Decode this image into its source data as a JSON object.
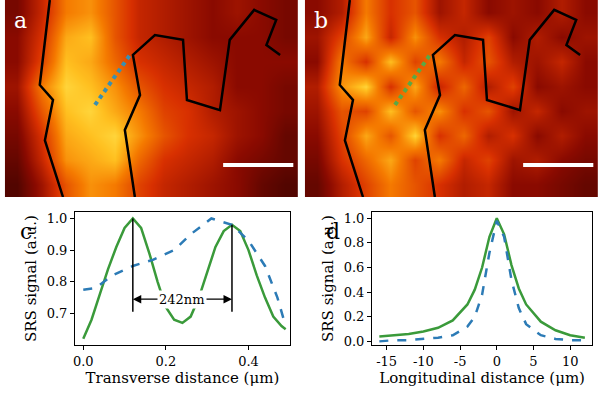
{
  "chart_data": [
    {
      "type": "heatmap",
      "panel_label": "a",
      "tick_labels": false,
      "xlim": [
        -0.5,
        11.5
      ],
      "ylim": [
        7.5,
        -0.5
      ],
      "zlim": [
        0,
        1
      ],
      "z": [
        [
          0.25,
          0.45,
          0.7,
          0.75,
          0.6,
          0.45,
          0.4,
          0.35,
          0.3,
          0.35,
          0.3,
          0.25
        ],
        [
          0.3,
          0.5,
          0.8,
          0.85,
          0.6,
          0.45,
          0.4,
          0.35,
          0.3,
          0.3,
          0.3,
          0.25
        ],
        [
          0.3,
          0.55,
          0.85,
          0.8,
          0.65,
          0.5,
          0.45,
          0.4,
          0.35,
          0.3,
          0.3,
          0.3
        ],
        [
          0.35,
          0.7,
          0.9,
          0.85,
          0.75,
          0.6,
          0.5,
          0.45,
          0.4,
          0.3,
          0.3,
          0.25
        ],
        [
          0.3,
          0.6,
          0.85,
          0.9,
          0.8,
          0.7,
          0.55,
          0.5,
          0.4,
          0.35,
          0.3,
          0.25
        ],
        [
          0.25,
          0.5,
          0.8,
          0.85,
          0.9,
          0.75,
          0.6,
          0.5,
          0.45,
          0.35,
          0.3,
          0.2
        ],
        [
          0.2,
          0.45,
          0.75,
          0.8,
          0.85,
          0.65,
          0.5,
          0.45,
          0.4,
          0.3,
          0.25,
          0.2
        ],
        [
          0.15,
          0.35,
          0.6,
          0.75,
          0.7,
          0.55,
          0.45,
          0.4,
          0.35,
          0.3,
          0.2,
          0.15
        ]
      ],
      "series": [
        {
          "color": "#000000",
          "x": [
            1.34,
            0.93,
            1.47,
            1.14,
            1.88
          ],
          "values": [
            -0.5,
            2.95,
            3.56,
            5.2,
            7.5
          ]
        },
        {
          "color": "#000000",
          "x": [
            4.82,
            4.41,
            5.03,
            4.74,
            5.64,
            6.79,
            6.95,
            8.3,
            8.7,
            9.7,
            10.6,
            10.2,
            10.76
          ],
          "values": [
            7.5,
            4.78,
            3.36,
            1.73,
            0.92,
            1.12,
            3.56,
            3.97,
            1.12,
            -0.1,
            0.31,
            1.33,
            1.73
          ]
        },
        {
          "color": "#3a8fb0",
          "line_style": "dot",
          "x": [
            3.19,
            4.62
          ],
          "values": [
            3.76,
            1.73
          ]
        },
        {
          "color": "#ffffff",
          "x": [
            8.43,
            11.3
          ],
          "values": [
            6.2,
            6.2
          ]
        }
      ]
    },
    {
      "type": "heatmap",
      "panel_label": "b",
      "tick_labels": false,
      "xlim": [
        -0.5,
        11.5
      ],
      "ylim": [
        7.5,
        -0.5
      ],
      "zlim": [
        0,
        1
      ],
      "z": [
        [
          0.3,
          0.4,
          0.7,
          0.5,
          0.6,
          0.35,
          0.45,
          0.3,
          0.35,
          0.3,
          0.4,
          0.3
        ],
        [
          0.35,
          0.55,
          0.8,
          0.45,
          0.75,
          0.5,
          0.4,
          0.55,
          0.3,
          0.4,
          0.3,
          0.35
        ],
        [
          0.3,
          0.7,
          0.5,
          0.85,
          0.55,
          0.7,
          0.45,
          0.6,
          0.4,
          0.35,
          0.45,
          0.3
        ],
        [
          0.4,
          0.75,
          0.9,
          0.5,
          0.8,
          0.45,
          0.65,
          0.4,
          0.55,
          0.3,
          0.35,
          0.3
        ],
        [
          0.35,
          0.6,
          0.55,
          0.85,
          0.6,
          0.75,
          0.5,
          0.6,
          0.35,
          0.45,
          0.3,
          0.35
        ],
        [
          0.3,
          0.55,
          0.8,
          0.6,
          0.9,
          0.5,
          0.65,
          0.4,
          0.5,
          0.3,
          0.4,
          0.3
        ],
        [
          0.25,
          0.5,
          0.65,
          0.8,
          0.55,
          0.7,
          0.45,
          0.55,
          0.35,
          0.4,
          0.3,
          0.25
        ],
        [
          0.2,
          0.4,
          0.55,
          0.7,
          0.6,
          0.5,
          0.4,
          0.45,
          0.3,
          0.3,
          0.25,
          0.2
        ]
      ],
      "series": [
        {
          "color": "#000000",
          "x": [
            1.34,
            0.93,
            1.47,
            1.14,
            1.88
          ],
          "values": [
            -0.5,
            2.95,
            3.56,
            5.2,
            7.5
          ]
        },
        {
          "color": "#000000",
          "x": [
            4.82,
            4.41,
            5.03,
            4.74,
            5.64,
            6.79,
            6.95,
            8.3,
            8.7,
            9.7,
            10.6,
            10.2,
            10.76
          ],
          "values": [
            7.5,
            4.78,
            3.36,
            1.73,
            0.92,
            1.12,
            3.56,
            3.97,
            1.12,
            -0.1,
            0.31,
            1.33,
            1.73
          ]
        },
        {
          "color": "#5aa845",
          "line_style": "dot",
          "x": [
            3.19,
            4.62
          ],
          "values": [
            3.76,
            1.73
          ]
        },
        {
          "color": "#ffffff",
          "x": [
            8.43,
            11.3
          ],
          "values": [
            6.2,
            6.2
          ]
        }
      ]
    },
    {
      "type": "line",
      "panel_label": "c",
      "grid": false,
      "x_label": "Transverse distance (μm)",
      "y_label": "SRS signal (a.u.)",
      "xlim": [
        -0.02,
        0.5
      ],
      "ylim": [
        0.6,
        1.02
      ],
      "xticks": [
        {
          "value": 0,
          "label": "0.0"
        },
        0.2,
        0.4
      ],
      "yticks": [
        0.7,
        0.8,
        0.9,
        {
          "value": 1,
          "label": "1.0"
        }
      ],
      "series": [
        {
          "color": "#3a9a3a",
          "line_style": "solid",
          "x": [
            0,
            0.02,
            0.04,
            0.06,
            0.08,
            0.1,
            0.12,
            0.14,
            0.16,
            0.18,
            0.2,
            0.22,
            0.24,
            0.26,
            0.28,
            0.3,
            0.32,
            0.34,
            0.36,
            0.38,
            0.4,
            0.42,
            0.44,
            0.46,
            0.48,
            0.49
          ],
          "values": [
            0.62,
            0.68,
            0.76,
            0.84,
            0.91,
            0.97,
            1.0,
            0.97,
            0.89,
            0.8,
            0.72,
            0.68,
            0.67,
            0.69,
            0.75,
            0.83,
            0.91,
            0.96,
            0.98,
            0.96,
            0.9,
            0.82,
            0.75,
            0.69,
            0.66,
            0.65
          ]
        },
        {
          "color": "#2c7bb6",
          "line_style": "dash",
          "x": [
            0,
            0.03,
            0.07,
            0.12,
            0.17,
            0.22,
            0.26,
            0.3,
            0.31,
            0.36,
            0.4,
            0.44,
            0.47,
            0.49
          ],
          "values": [
            0.775,
            0.78,
            0.82,
            0.85,
            0.87,
            0.9,
            0.95,
            0.99,
            1.0,
            0.98,
            0.93,
            0.85,
            0.75,
            0.66
          ]
        },
        {
          "color": "#000000",
          "line_style": "solid",
          "x": [
            0.12,
            0.12
          ],
          "values": [
            0.705,
            1.0
          ]
        },
        {
          "color": "#000000",
          "line_style": "solid",
          "x": [
            0.36,
            0.36
          ],
          "values": [
            0.705,
            0.98
          ]
        }
      ],
      "annotations": [
        {
          "text": "242nm",
          "x": [
            0.12,
            0.36
          ],
          "y": 0.745
        }
      ]
    },
    {
      "type": "line",
      "panel_label": "d",
      "grid": false,
      "x_label": "Longitudinal distance (μm)",
      "y_label": "SRS signal (a.u.)",
      "xlim": [
        -17,
        13
      ],
      "ylim": [
        -0.03,
        1.05
      ],
      "xticks": [
        -15,
        -10,
        -5,
        0,
        5,
        10
      ],
      "yticks": [
        {
          "value": 0,
          "label": "0.0"
        },
        0.2,
        0.4,
        0.6,
        0.8,
        {
          "value": 1,
          "label": "1.0"
        }
      ],
      "series": [
        {
          "color": "#3a9a3a",
          "line_style": "solid",
          "x": [
            -16,
            -14,
            -12,
            -10,
            -8,
            -6,
            -4,
            -3,
            -2,
            -1,
            0,
            1,
            2,
            3,
            4,
            6,
            8,
            10,
            12
          ],
          "values": [
            0.04,
            0.05,
            0.06,
            0.08,
            0.11,
            0.17,
            0.3,
            0.42,
            0.6,
            0.85,
            1.0,
            0.87,
            0.62,
            0.43,
            0.3,
            0.16,
            0.09,
            0.05,
            0.03
          ]
        },
        {
          "color": "#2c7bb6",
          "line_style": "dash",
          "x": [
            -16,
            -14,
            -12,
            -10,
            -8,
            -6,
            -4,
            -3,
            -2,
            -1,
            0,
            1,
            2,
            3,
            4,
            6,
            8,
            10,
            12
          ],
          "values": [
            0.0,
            0.01,
            0.01,
            0.02,
            0.03,
            0.05,
            0.12,
            0.2,
            0.38,
            0.72,
            0.98,
            0.85,
            0.5,
            0.27,
            0.14,
            0.05,
            0.02,
            0.01,
            0.01
          ]
        }
      ]
    }
  ]
}
